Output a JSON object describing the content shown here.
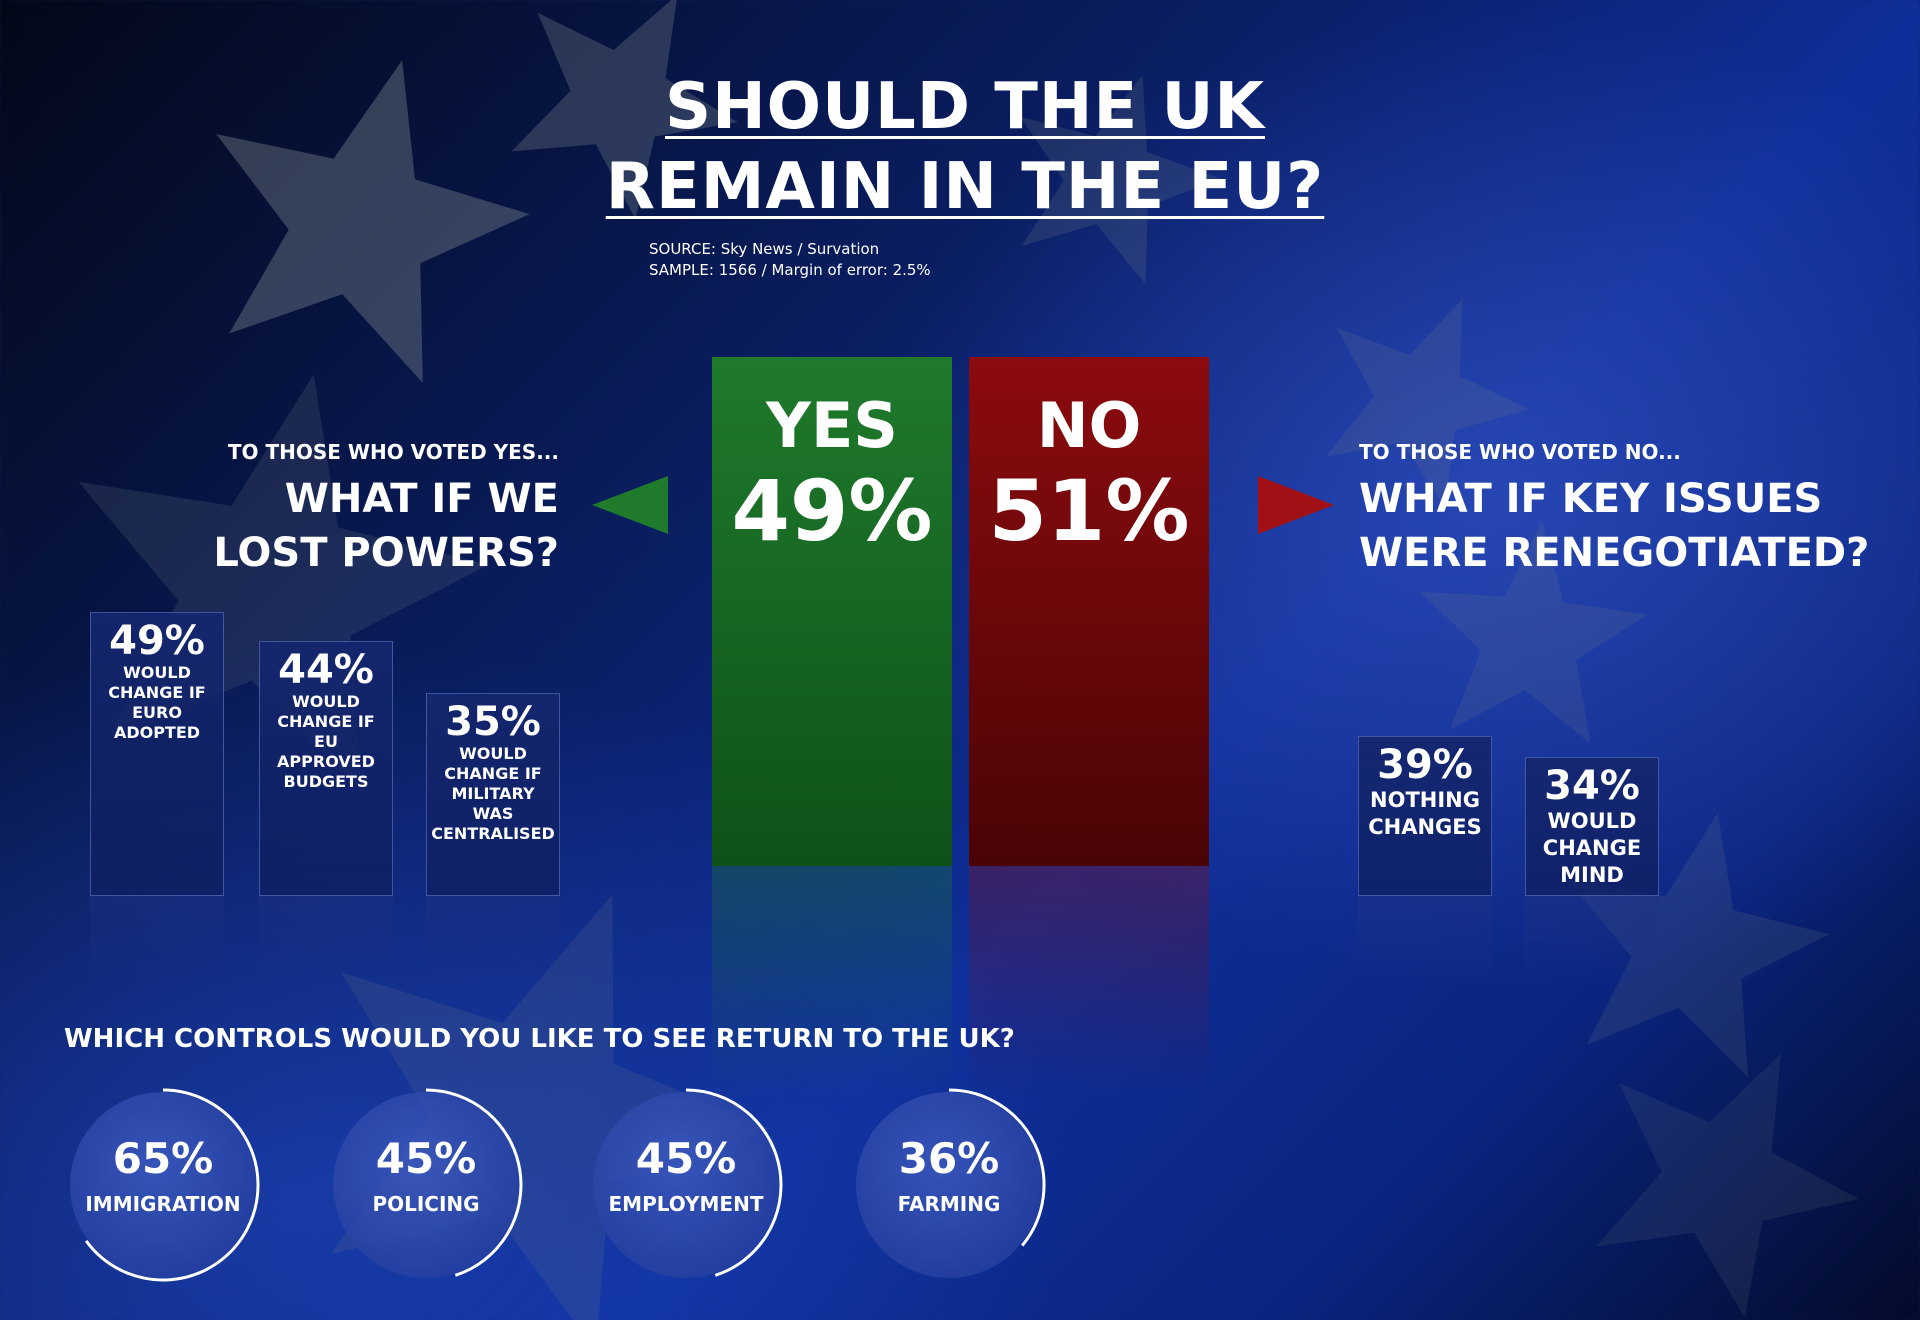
{
  "title": {
    "line1": "SHOULD THE UK",
    "line2": "REMAIN IN THE EU?"
  },
  "source": {
    "line1": "SOURCE: Sky News / Survation",
    "line2": "SAMPLE: 1566 / Margin of error: 2.5%"
  },
  "colors": {
    "yes": "#1f7a2c",
    "no": "#8c0b0e",
    "background": "#0b2a8a"
  },
  "left_panel": {
    "kicker": "TO THOSE WHO VOTED YES...",
    "heading_line1": "WHAT IF WE",
    "heading_line2": "LOST POWERS?"
  },
  "right_panel": {
    "kicker": "TO THOSE WHO VOTED NO...",
    "heading_line1": "WHAT IF KEY ISSUES",
    "heading_line2": "WERE RENEGOTIATED?"
  },
  "question": "WHICH CONTROLS WOULD YOU LIKE TO SEE RETURN TO THE UK?",
  "chart_data": [
    {
      "type": "bar",
      "categories": [
        "YES",
        "NO"
      ],
      "values": [
        49,
        51
      ],
      "value_labels": [
        "49%",
        "51%"
      ],
      "ylim": [
        0,
        100
      ]
    },
    {
      "type": "bar",
      "categories": [
        "WOULD CHANGE IF EURO ADOPTED",
        "WOULD CHANGE IF EU APPROVED BUDGETS",
        "WOULD CHANGE IF MILITARY WAS CENTRALISED"
      ],
      "label_lines": [
        [
          "WOULD",
          "CHANGE IF",
          "EURO",
          "ADOPTED"
        ],
        [
          "WOULD",
          "CHANGE IF",
          "EU APPROVED",
          "BUDGETS"
        ],
        [
          "WOULD",
          "CHANGE IF",
          "MILITARY WAS",
          "CENTRALISED"
        ]
      ],
      "values": [
        49,
        44,
        35
      ],
      "value_labels": [
        "49%",
        "44%",
        "35%"
      ]
    },
    {
      "type": "bar",
      "categories": [
        "NOTHING CHANGES",
        "WOULD CHANGE MIND"
      ],
      "label_lines": [
        [
          "NOTHING",
          "CHANGES"
        ],
        [
          "WOULD",
          "CHANGE",
          "MIND"
        ]
      ],
      "values": [
        39,
        34
      ],
      "value_labels": [
        "39%",
        "34%"
      ]
    },
    {
      "type": "pie",
      "categories": [
        "IMMIGRATION",
        "POLICING",
        "EMPLOYMENT",
        "FARMING"
      ],
      "values": [
        65,
        45,
        45,
        36
      ],
      "value_labels": [
        "65%",
        "45%",
        "45%",
        "36%"
      ]
    }
  ]
}
